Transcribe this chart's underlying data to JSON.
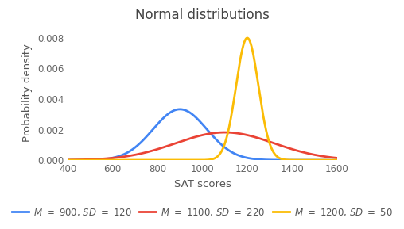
{
  "title": "Normal distributions",
  "xlabel": "SAT scores",
  "ylabel": "Probability density",
  "xlim": [
    400,
    1600
  ],
  "ylim": [
    0,
    0.0088
  ],
  "yticks": [
    0.0,
    0.002,
    0.004,
    0.006,
    0.008
  ],
  "xticks": [
    400,
    600,
    800,
    1000,
    1200,
    1400,
    1600
  ],
  "distributions": [
    {
      "mean": 900,
      "sd": 120,
      "color": "#4285F4",
      "label": "M = 900, SD = 120"
    },
    {
      "mean": 1100,
      "sd": 220,
      "color": "#EA4335",
      "label": "M = 1100, SD = 220"
    },
    {
      "mean": 1200,
      "sd": 50,
      "color": "#FBBC05",
      "label": "M = 1200, SD = 50"
    }
  ],
  "title_fontsize": 12,
  "label_fontsize": 9.5,
  "tick_fontsize": 8.5,
  "legend_fontsize": 8.5,
  "title_color": "#444444",
  "axis_color": "#555555",
  "tick_color": "#666666",
  "background_color": "#ffffff",
  "line_width": 2.0
}
